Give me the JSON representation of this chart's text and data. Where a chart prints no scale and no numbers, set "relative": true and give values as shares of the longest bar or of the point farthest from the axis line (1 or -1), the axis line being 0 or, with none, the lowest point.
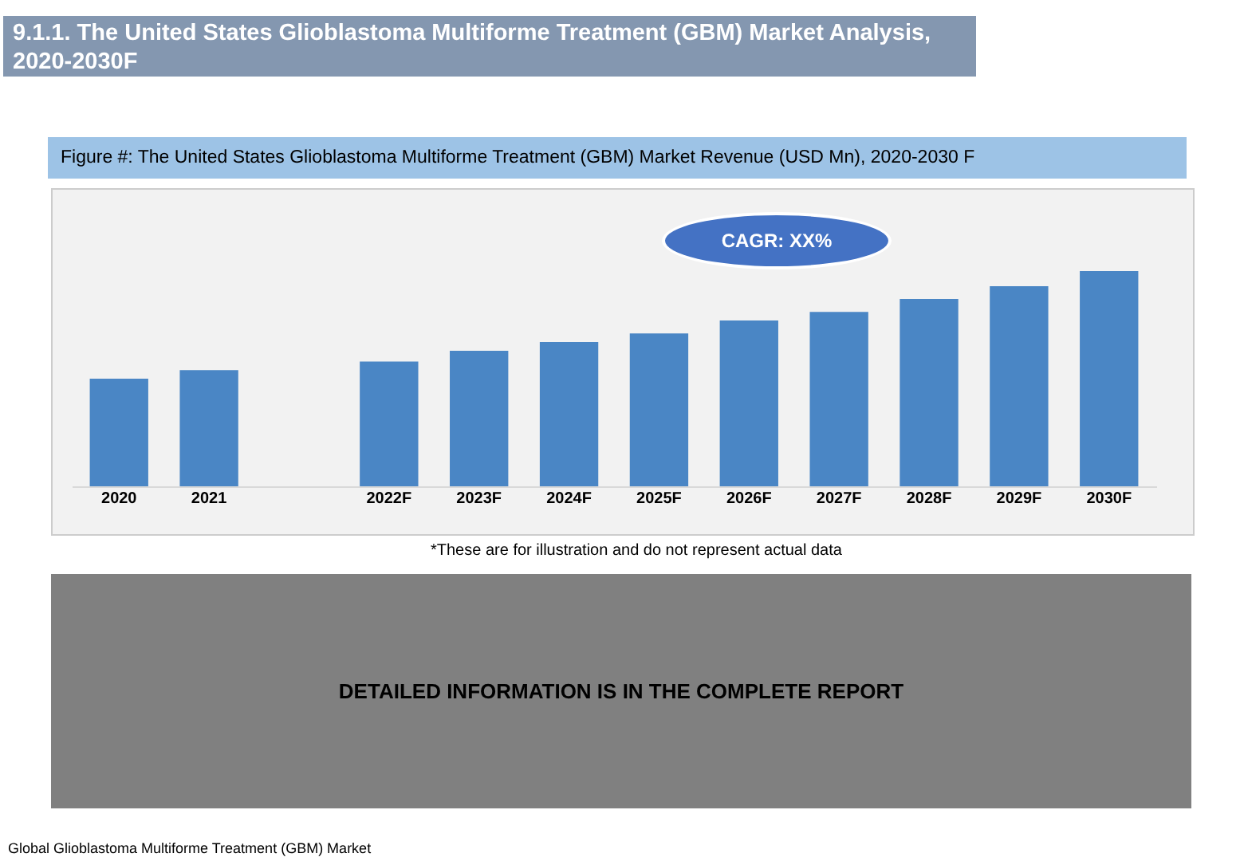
{
  "chart_data": {
    "type": "bar",
    "title": "9.1.1. The United States Glioblastoma Multiforme Treatment (GBM) Market Analysis, 2020-2030F",
    "subtitle": "Figure #: The United States Glioblastoma Multiforme Treatment (GBM) Market Revenue (USD Mn), 2020-2030 F",
    "categories": [
      "2020",
      "2021",
      null,
      "2022F",
      "2023F",
      "2024F",
      "2025F",
      "2026F",
      "2027F",
      "2028F",
      "2029F",
      "2030F"
    ],
    "values": [
      0.5,
      0.54,
      null,
      0.58,
      0.63,
      0.67,
      0.71,
      0.77,
      0.81,
      0.87,
      0.93,
      1
    ],
    "color": "#4a86c5",
    "relative": true,
    "grid": false,
    "legend": false,
    "annotations": [
      "CAGR: XX%",
      "*These are for illustration and do not represent actual data",
      "DETAILED INFORMATION IS IN THE COMPLETE REPORT",
      "Global Glioblastoma Multiforme Treatment (GBM) Market"
    ]
  }
}
